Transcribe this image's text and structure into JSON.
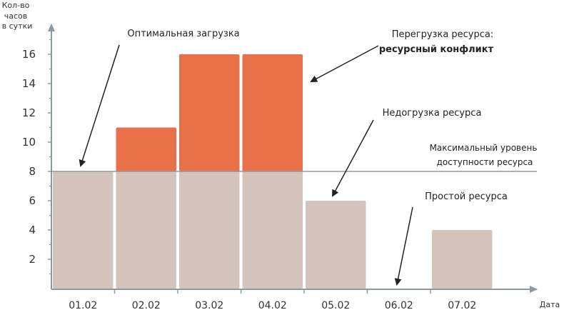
{
  "chart_data": {
    "type": "bar",
    "ylabel": [
      "Кол-во",
      "часов",
      "в сутки"
    ],
    "xlabel": "Дата",
    "categories": [
      "01.02",
      "02.02",
      "03.02",
      "04.02",
      "05.02",
      "06.02",
      "07.02"
    ],
    "values": [
      8,
      11,
      16,
      16,
      6,
      0,
      4
    ],
    "capacity": 8,
    "ylim": [
      0,
      18
    ],
    "yticks": [
      2,
      4,
      6,
      8,
      10,
      12,
      14,
      16
    ],
    "colors": {
      "base": "#d5c4bb",
      "overload": "#e8714a",
      "line": "#8c9aa0",
      "axis": "#8c9aa0"
    },
    "annotations": {
      "optimal": "Оптимальная загрузка",
      "overload_line1": "Перегрузка ресурса:",
      "overload_line2": "ресурсный конфликт",
      "underload": "Недогрузка ресурса",
      "capacity_line1": "Максимальный уровень",
      "capacity_line2": "доступности ресурса",
      "idle": "Простой ресурса"
    }
  }
}
